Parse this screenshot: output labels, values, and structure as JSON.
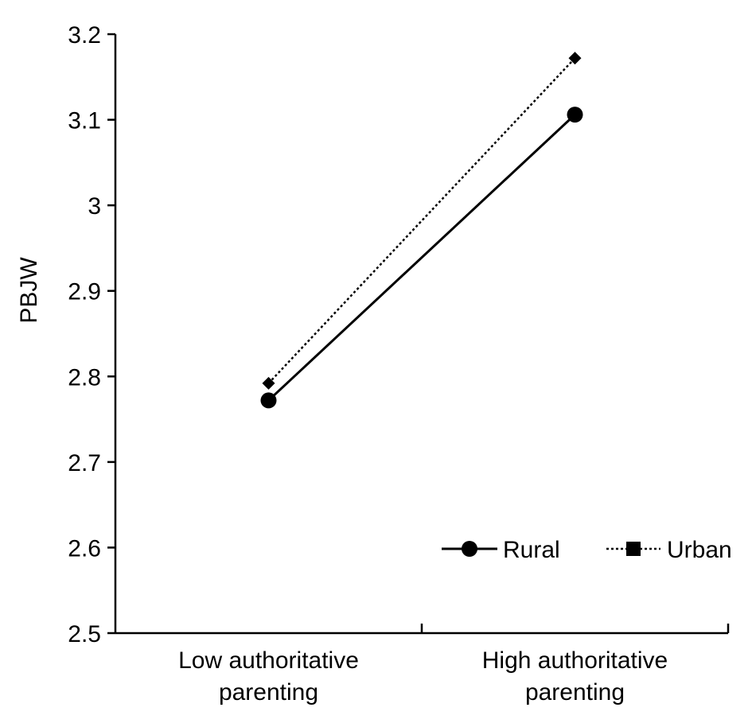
{
  "chart_data": {
    "type": "line",
    "title": "",
    "xlabel": "",
    "ylabel": "PBJW",
    "ylim": [
      2.5,
      3.2
    ],
    "yticks": [
      "2.5",
      "2.6",
      "2.7",
      "2.8",
      "2.9",
      "3",
      "3.1",
      "3.2"
    ],
    "categories": [
      [
        "Low authoritative",
        "parenting"
      ],
      [
        "High authoritative",
        "parenting"
      ]
    ],
    "series": [
      {
        "name": "Rural",
        "values": [
          2.772,
          3.106
        ],
        "line_style": "solid",
        "marker": "circle",
        "color": "#000000"
      },
      {
        "name": "Urban",
        "values": [
          2.792,
          3.172
        ],
        "line_style": "dotted",
        "marker": "diamond",
        "color": "#000000"
      }
    ],
    "grid": false,
    "legend_position": "bottom-right"
  }
}
